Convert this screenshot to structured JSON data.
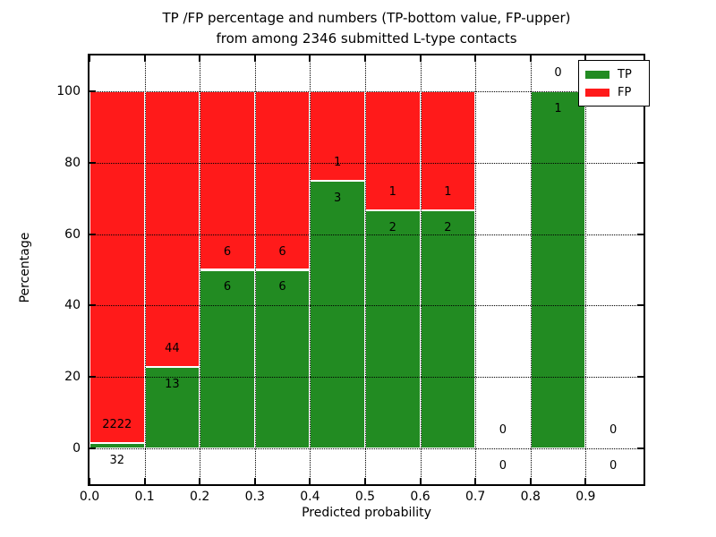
{
  "chart_data": {
    "type": "bar",
    "stacked": true,
    "orientation": "vertical",
    "title_line1": "TP /FP percentage and numbers (TP-bottom value, FP-upper)",
    "title_line2": "from among 2346 submitted L-type contacts",
    "xlabel": "Predicted probability",
    "ylabel": "Percentage",
    "xlim": [
      0,
      1.005
    ],
    "ylim": [
      -10,
      110
    ],
    "x_tick_labels": [
      "0.0",
      "0.1",
      "0.2",
      "0.3",
      "0.4",
      "0.5",
      "0.6",
      "0.7",
      "0.8",
      "0.9"
    ],
    "x_tick_values": [
      0,
      0.1,
      0.2,
      0.3,
      0.4,
      0.5,
      0.6,
      0.7,
      0.8,
      0.9
    ],
    "y_tick_values": [
      0,
      20,
      40,
      60,
      80,
      100
    ],
    "grid": "dotted-both-axes-over-bars",
    "legend_position": "upper-right",
    "legend": [
      {
        "label": "TP",
        "color": "#228B22"
      },
      {
        "label": "FP",
        "color": "#FF1A1A"
      }
    ],
    "bins": [
      {
        "range": [
          0.0,
          0.1
        ],
        "tp": 32,
        "fp": 2222,
        "tp_pct": 1.42
      },
      {
        "range": [
          0.1,
          0.2
        ],
        "tp": 13,
        "fp": 44,
        "tp_pct": 22.81
      },
      {
        "range": [
          0.2,
          0.3
        ],
        "tp": 6,
        "fp": 6,
        "tp_pct": 50
      },
      {
        "range": [
          0.3,
          0.4
        ],
        "tp": 6,
        "fp": 6,
        "tp_pct": 50
      },
      {
        "range": [
          0.4,
          0.5
        ],
        "tp": 3,
        "fp": 1,
        "tp_pct": 75
      },
      {
        "range": [
          0.5,
          0.6
        ],
        "tp": 2,
        "fp": 1,
        "tp_pct": 66.67
      },
      {
        "range": [
          0.6,
          0.7
        ],
        "tp": 2,
        "fp": 1,
        "tp_pct": 66.67
      },
      {
        "range": [
          0.7,
          0.8
        ],
        "tp": 0,
        "fp": 0,
        "tp_pct": null
      },
      {
        "range": [
          0.8,
          0.9
        ],
        "tp": 1,
        "fp": 0,
        "tp_pct": 100
      },
      {
        "range": [
          0.9,
          1.0
        ],
        "tp": 0,
        "fp": 0,
        "tp_pct": null
      }
    ],
    "colors": {
      "tp": "#228B22",
      "fp": "#FF1A1A",
      "bar_edge": "#FFFFFF",
      "grid": "#000000",
      "frame": "#000000",
      "text": "#000000",
      "background": "#FFFFFF"
    }
  }
}
